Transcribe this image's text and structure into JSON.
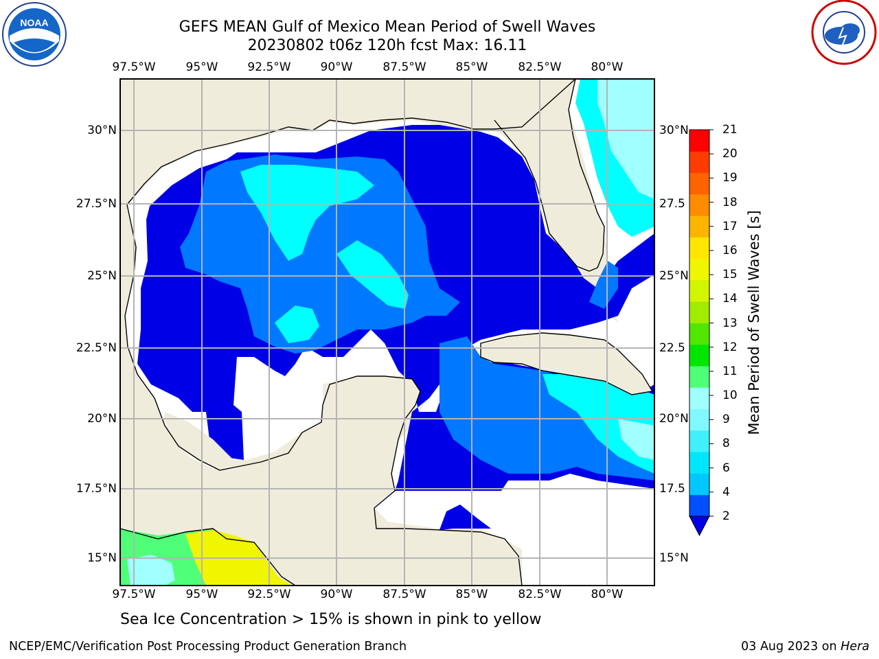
{
  "title_line1": "GEFS MEAN Gulf of Mexico Mean Period of Swell Waves",
  "title_line2": "20230802 t06z 120h fcst   Max: 16.11",
  "lon_ticks": [
    "97.5°W",
    "95°W",
    "92.5°W",
    "90°W",
    "87.5°W",
    "85°W",
    "82.5°W",
    "80°W"
  ],
  "lat_ticks_left": [
    "30°N",
    "27.5°N",
    "25°N",
    "22.5°N",
    "20°N",
    "17.5°N",
    "15°N"
  ],
  "lat_ticks_right": [
    "30°N",
    "27.5",
    "25°N",
    "22.5",
    "20°N",
    "17.5",
    "15°N"
  ],
  "colorbar": {
    "label": "Mean Period of Swell Waves [s]",
    "ticks": [
      "21",
      "20",
      "19",
      "18",
      "17",
      "16",
      "15",
      "14",
      "13",
      "12",
      "11",
      "10",
      "9",
      "8",
      "6",
      "4",
      "2"
    ],
    "levels": [
      {
        "value": "2-4",
        "color": "#0050ff"
      },
      {
        "value": "4-5",
        "color": "#00c8ff"
      },
      {
        "value": "5-6",
        "color": "#00e6ff"
      },
      {
        "value": "6-7",
        "color": "#40f0ff"
      },
      {
        "value": "7-8",
        "color": "#80f8ff"
      },
      {
        "value": "8-9",
        "color": "#a0ffff"
      },
      {
        "value": "9-10",
        "color": "#50ff78"
      },
      {
        "value": "10-11",
        "color": "#00e600"
      },
      {
        "value": "11-12",
        "color": "#50e600"
      },
      {
        "value": "12-13",
        "color": "#a0eb00"
      },
      {
        "value": "13-14",
        "color": "#d2f500"
      },
      {
        "value": "14-15",
        "color": "#f0f500"
      },
      {
        "value": "15-16",
        "color": "#ffe600"
      },
      {
        "value": "16-17",
        "color": "#ffb400"
      },
      {
        "value": "17-18",
        "color": "#ff8c00"
      },
      {
        "value": "18-19",
        "color": "#ff6400"
      },
      {
        "value": "19-20",
        "color": "#ff3c00"
      },
      {
        "value": "20-21",
        "color": "#ff0000"
      }
    ],
    "underflow_color": "#0000e6"
  },
  "colors": {
    "land": "#efecdc",
    "deep_blue": "#0000e6",
    "mid_blue": "#0078ff",
    "cyan": "#00ffff",
    "light_cyan": "#a0ffff",
    "grid": "#b4b4b4"
  },
  "footnote": "Sea Ice Concentration > 15% is shown in pink to yellow",
  "credit_left": "NCEP/EMC/Verification Post Processing Product Generation Branch",
  "credit_right_date": "03 Aug 2023 on ",
  "credit_right_host": "Hera",
  "logos": {
    "noaa": "NOAA",
    "nws": "NATIONAL WEATHER SERVICE"
  }
}
